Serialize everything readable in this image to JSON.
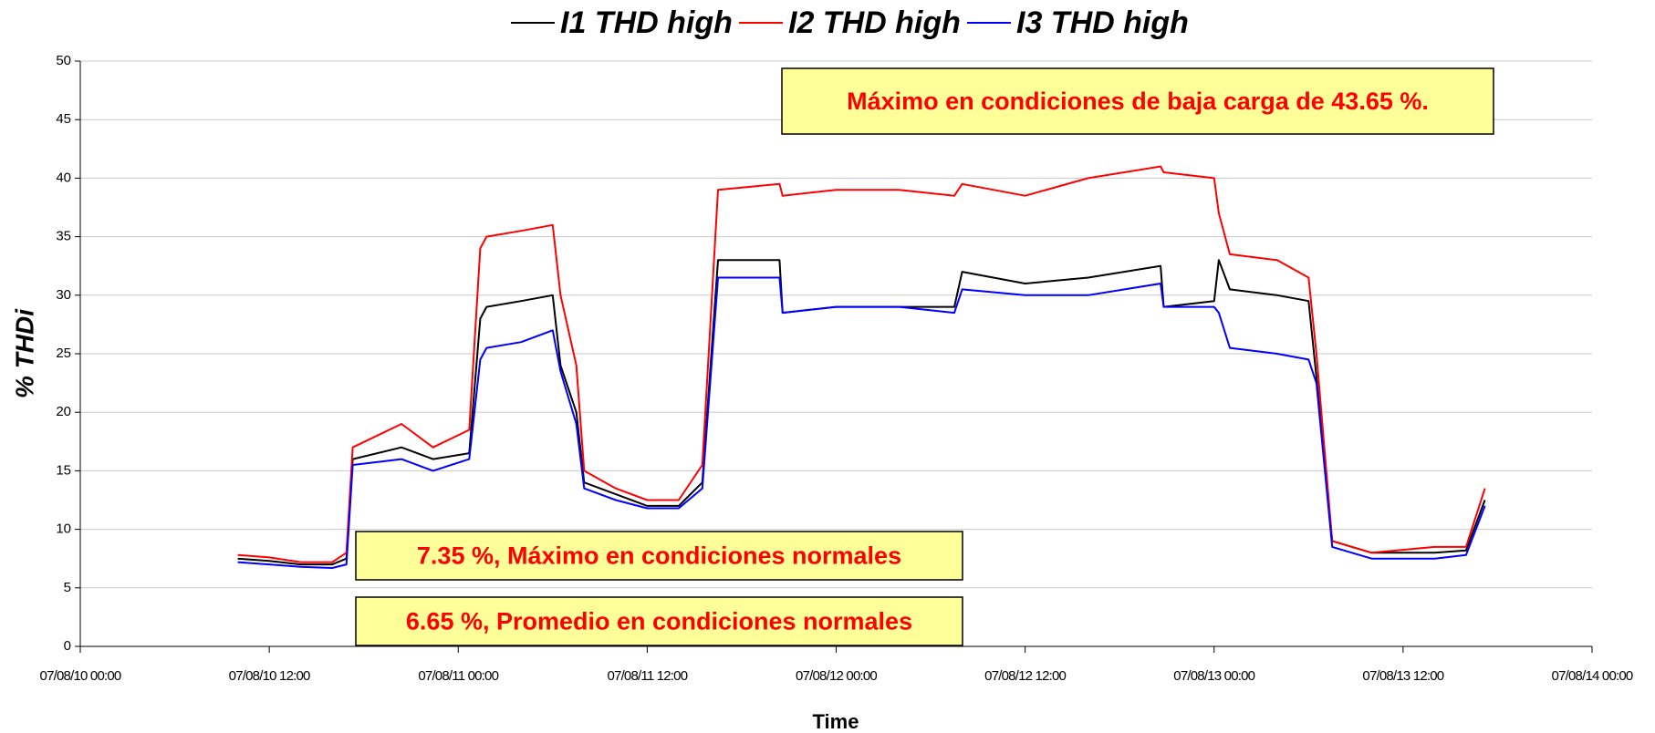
{
  "chart_data": {
    "type": "line",
    "xlabel": "Time",
    "ylabel": "% THDi",
    "xlim": [
      "07/08/10 00:00",
      "07/08/14 00:00"
    ],
    "xticks": [
      "07/08/10 00:00",
      "07/08/10 12:00",
      "07/08/11 00:00",
      "07/08/11 12:00",
      "07/08/12 00:00",
      "07/08/12 12:00",
      "07/08/13 00:00",
      "07/08/13 12:00",
      "07/08/14 00:00"
    ],
    "ylim": [
      0,
      50
    ],
    "yticks": [
      0,
      5,
      10,
      15,
      20,
      25,
      30,
      35,
      40,
      45,
      50
    ],
    "grid": true,
    "legend": "top",
    "annotations": [
      "Máximo en condiciones de baja carga  de 43.65 %.",
      "7.35 %, Máximo en condiciones normales",
      "6.65 %,  Promedio en condiciones normales"
    ],
    "x": [
      "07/08/10 10:00",
      "07/08/10 12:00",
      "07/08/10 14:00",
      "07/08/10 16:00",
      "07/08/10 16:54",
      "07/08/10 17:18",
      "07/08/10 20:24",
      "07/08/10 22:24",
      "07/08/11 00:42",
      "07/08/11 01:24",
      "07/08/11 01:48",
      "07/08/11 04:00",
      "07/08/11 06:00",
      "07/08/11 06:30",
      "07/08/11 07:30",
      "07/08/11 08:00",
      "07/08/11 10:00",
      "07/08/11 12:00",
      "07/08/11 14:00",
      "07/08/11 15:30",
      "07/08/11 16:30",
      "07/08/11 20:24",
      "07/08/11 20:36",
      "07/08/12 00:00",
      "07/08/12 04:00",
      "07/08/12 07:30",
      "07/08/12 08:00",
      "07/08/12 12:00",
      "07/08/12 16:00",
      "07/08/12 20:36",
      "07/08/12 20:48",
      "07/08/13 00:00",
      "07/08/13 00:18",
      "07/08/13 01:00",
      "07/08/13 04:00",
      "07/08/13 06:00",
      "07/08/13 06:30",
      "07/08/13 07:30",
      "07/08/13 10:00",
      "07/08/13 14:00",
      "07/08/13 16:00",
      "07/08/13 17:12"
    ],
    "series": [
      {
        "name": "I1 THD high",
        "color": "#000000",
        "values": [
          7.5,
          7.3,
          7.0,
          7.0,
          7.5,
          16,
          17,
          16,
          16.5,
          28,
          29,
          29.5,
          30,
          24,
          20,
          14,
          13,
          12,
          12,
          14,
          33,
          33,
          28.5,
          29,
          29,
          29,
          32,
          31,
          31.5,
          32.5,
          29,
          29.5,
          33,
          30.5,
          30,
          29.5,
          23,
          9,
          8,
          8,
          8.2,
          12.5
        ]
      },
      {
        "name": "I2 THD high",
        "color": "#ff0000",
        "values": [
          7.8,
          7.6,
          7.2,
          7.2,
          8,
          17,
          19,
          17,
          18.5,
          34,
          35,
          35.5,
          36,
          30,
          24,
          15,
          13.5,
          12.5,
          12.5,
          15.5,
          39,
          39.5,
          38.5,
          39,
          39,
          38.5,
          39.5,
          38.5,
          40,
          41,
          40.5,
          40,
          37,
          33.5,
          33,
          31.5,
          25,
          9,
          8,
          8.5,
          8.5,
          13.5
        ]
      },
      {
        "name": "I3 THD high",
        "color": "#0000ff",
        "values": [
          7.2,
          7.0,
          6.8,
          6.7,
          7,
          15.5,
          16,
          15,
          16,
          24.5,
          25.5,
          26,
          27,
          23.5,
          19,
          13.5,
          12.5,
          11.8,
          11.8,
          13.5,
          31.5,
          31.5,
          28.5,
          29,
          29,
          28.5,
          30.5,
          30,
          30,
          31,
          29,
          29,
          28.5,
          25.5,
          25,
          24.5,
          22.5,
          8.5,
          7.5,
          7.5,
          7.8,
          12
        ]
      }
    ]
  }
}
